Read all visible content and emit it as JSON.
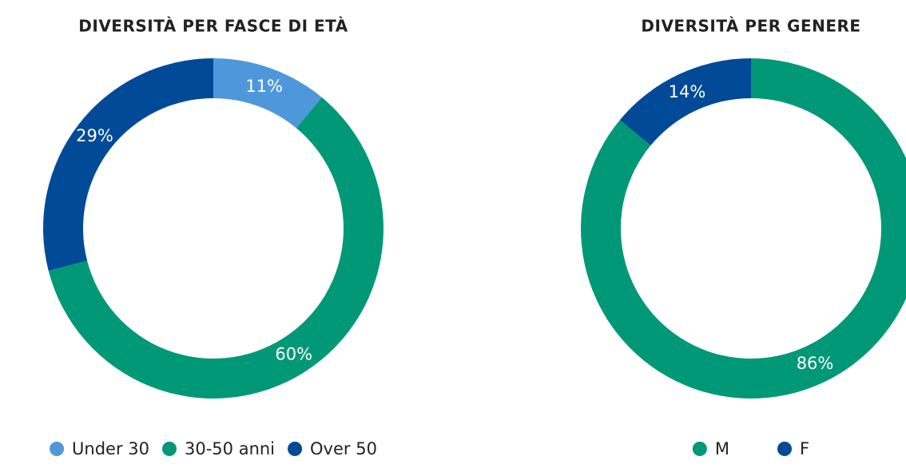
{
  "chart_data": [
    {
      "type": "pie",
      "title": "DIVERSITÀ PER FASCE DI ETÀ",
      "categories": [
        "Under 30",
        "30-50 anni",
        "Over 50"
      ],
      "values": [
        11,
        60,
        29
      ],
      "value_labels": [
        "11%",
        "60%",
        "29%"
      ],
      "colors": [
        "#4f97db",
        "#009877",
        "#004a97"
      ]
    },
    {
      "type": "pie",
      "title": "DIVERSITÀ PER GENERE",
      "categories": [
        "M",
        "F"
      ],
      "values": [
        86,
        14
      ],
      "value_labels": [
        "86%",
        "14%"
      ],
      "colors": [
        "#009877",
        "#004a97"
      ]
    }
  ]
}
